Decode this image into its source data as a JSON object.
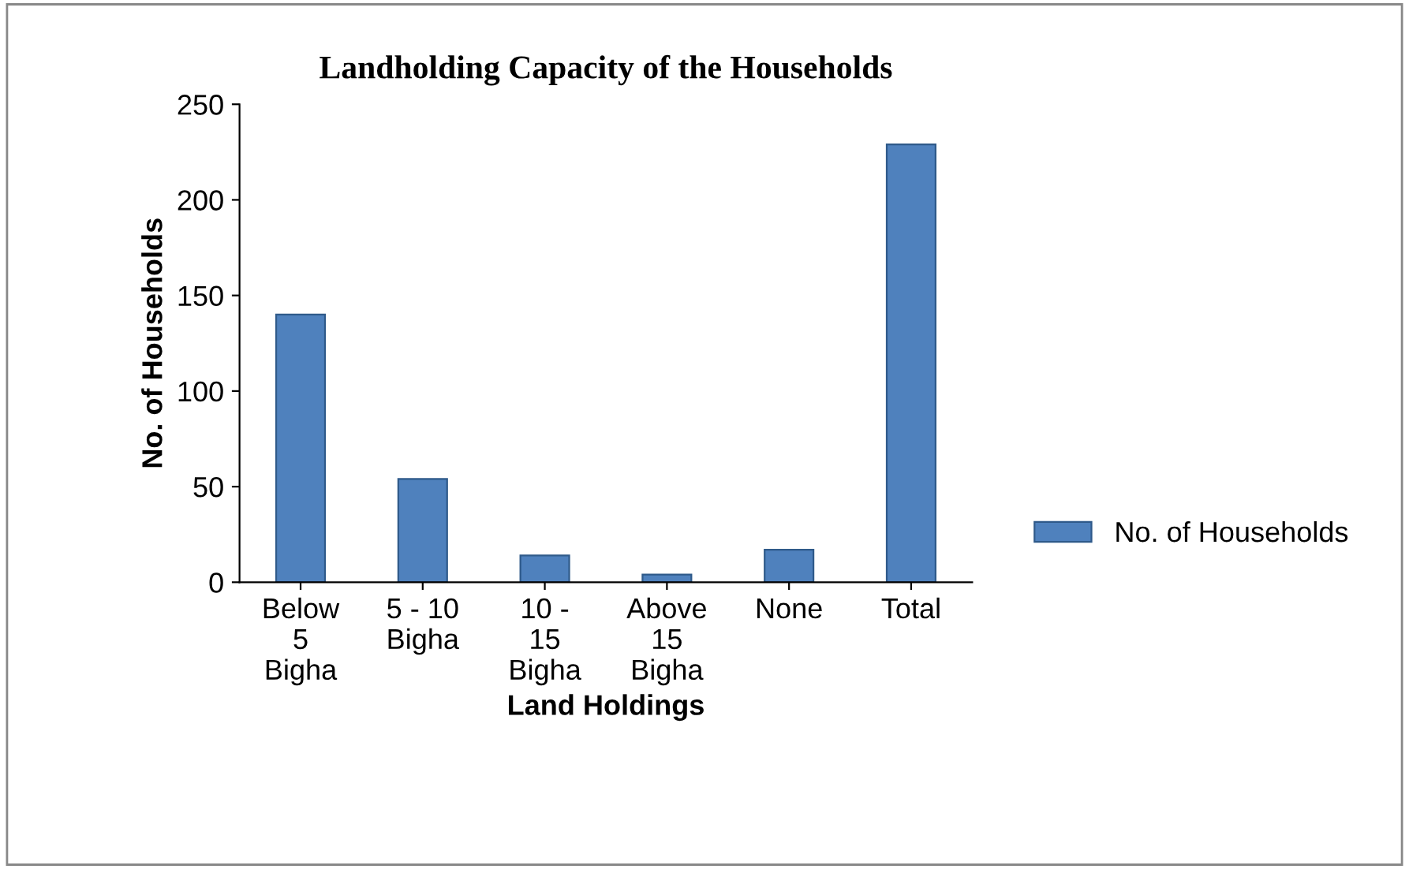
{
  "chart_data": {
    "type": "bar",
    "title": "Landholding Capacity of the Households",
    "xlabel": "Land Holdings",
    "ylabel": "No. of Households",
    "categories": [
      "Below\n5\nBigha",
      "5 - 10\nBigha",
      "10 -\n15\nBigha",
      "Above\n15\nBigha",
      "None",
      "Total"
    ],
    "series": [
      {
        "name": "No. of Households",
        "color": "#4f81bd",
        "values": [
          140,
          54,
          14,
          4,
          17,
          229
        ]
      }
    ],
    "ylim": [
      0,
      250
    ],
    "yticks": [
      0,
      50,
      100,
      150,
      200,
      250
    ],
    "grid": false,
    "legend": "right"
  }
}
